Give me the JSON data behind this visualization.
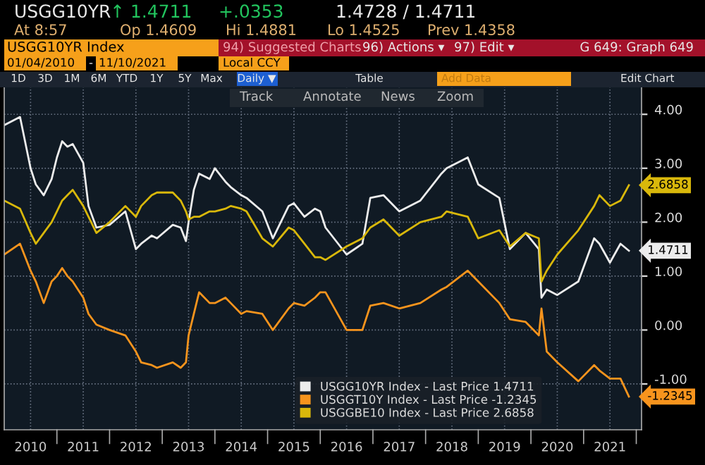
{
  "chart_data": {
    "type": "line",
    "x": [
      2010.0,
      2010.3,
      2010.5,
      2010.6,
      2010.75,
      2010.9,
      2011.0,
      2011.1,
      2011.2,
      2011.3,
      2011.5,
      2011.6,
      2011.75,
      2012.0,
      2012.3,
      2012.5,
      2012.6,
      2012.8,
      2012.9,
      2013.2,
      2013.35,
      2013.45,
      2013.5,
      2013.6,
      2013.7,
      2013.9,
      2014.0,
      2014.2,
      2014.3,
      2014.5,
      2014.6,
      2014.9,
      2015.1,
      2015.4,
      2015.5,
      2015.7,
      2015.9,
      2016.0,
      2016.1,
      2016.5,
      2016.8,
      2016.95,
      2017.2,
      2017.5,
      2017.9,
      2018.3,
      2018.4,
      2018.8,
      2019.0,
      2019.4,
      2019.6,
      2019.9,
      2020.15,
      2020.2,
      2020.3,
      2020.5,
      2020.9,
      2021.2,
      2021.3,
      2021.5,
      2021.7,
      2021.86
    ],
    "series": [
      {
        "name": "USGG10YR Index - Last Price 1.4711",
        "color": "#ececec",
        "values": [
          3.8,
          3.95,
          3.0,
          2.7,
          2.5,
          2.8,
          3.2,
          3.5,
          3.4,
          3.45,
          3.1,
          2.3,
          1.9,
          1.95,
          2.2,
          1.5,
          1.6,
          1.75,
          1.7,
          1.95,
          1.9,
          1.65,
          2.0,
          2.6,
          2.9,
          2.8,
          3.0,
          2.75,
          2.65,
          2.5,
          2.45,
          2.2,
          1.7,
          2.3,
          2.35,
          2.1,
          2.25,
          2.2,
          1.9,
          1.4,
          1.6,
          2.45,
          2.5,
          2.2,
          2.4,
          2.9,
          3.0,
          3.2,
          2.7,
          2.45,
          1.5,
          1.8,
          1.5,
          0.6,
          0.75,
          0.65,
          0.9,
          1.7,
          1.6,
          1.25,
          1.6,
          1.4711
        ]
      },
      {
        "name": "USGGT10Y Index - Last Price -1.2345",
        "color": "#f7941d",
        "values": [
          1.4,
          1.6,
          1.1,
          0.9,
          0.5,
          0.9,
          1.0,
          1.15,
          1.0,
          0.9,
          0.6,
          0.3,
          0.1,
          0.0,
          -0.1,
          -0.4,
          -0.6,
          -0.65,
          -0.7,
          -0.6,
          -0.7,
          -0.6,
          -0.1,
          0.3,
          0.7,
          0.5,
          0.5,
          0.6,
          0.5,
          0.3,
          0.35,
          0.3,
          0.0,
          0.4,
          0.5,
          0.45,
          0.6,
          0.7,
          0.7,
          0.0,
          0.0,
          0.45,
          0.5,
          0.4,
          0.5,
          0.75,
          0.8,
          1.1,
          0.9,
          0.5,
          0.2,
          0.15,
          -0.1,
          0.4,
          -0.4,
          -0.6,
          -0.95,
          -0.65,
          -0.75,
          -0.9,
          -0.9,
          -1.2345
        ]
      },
      {
        "name": "USGGBE10 Index - Last Price 2.6858",
        "color": "#d9b80b",
        "values": [
          2.4,
          2.25,
          1.8,
          1.6,
          1.8,
          2.0,
          2.2,
          2.4,
          2.5,
          2.6,
          2.3,
          2.1,
          1.8,
          2.0,
          2.3,
          2.1,
          2.3,
          2.5,
          2.55,
          2.55,
          2.4,
          2.2,
          2.05,
          2.1,
          2.1,
          2.2,
          2.2,
          2.25,
          2.3,
          2.25,
          2.2,
          1.7,
          1.55,
          1.9,
          1.85,
          1.6,
          1.35,
          1.35,
          1.3,
          1.55,
          1.7,
          1.9,
          2.05,
          1.75,
          2.0,
          2.1,
          2.2,
          2.1,
          1.7,
          1.85,
          1.55,
          1.8,
          1.7,
          0.9,
          1.1,
          1.4,
          1.85,
          2.3,
          2.5,
          2.3,
          2.4,
          2.6858
        ]
      }
    ],
    "xlim": [
      2010.0,
      2022.1
    ],
    "ylim": [
      -1.85,
      4.5
    ],
    "xticks": [
      {
        "value": 2010.5,
        "label": "2010"
      },
      {
        "value": 2011.5,
        "label": "2011"
      },
      {
        "value": 2012.5,
        "label": "2012"
      },
      {
        "value": 2013.5,
        "label": "2013"
      },
      {
        "value": 2014.5,
        "label": "2014"
      },
      {
        "value": 2015.5,
        "label": "2015"
      },
      {
        "value": 2016.5,
        "label": "2016"
      },
      {
        "value": 2017.5,
        "label": "2017"
      },
      {
        "value": 2018.5,
        "label": "2018"
      },
      {
        "value": 2019.5,
        "label": "2019"
      },
      {
        "value": 2020.5,
        "label": "2020"
      },
      {
        "value": 2021.5,
        "label": "2021"
      }
    ],
    "yticks": [
      {
        "value": -1,
        "label": "-1.00"
      },
      {
        "value": 0,
        "label": "0.00"
      },
      {
        "value": 1,
        "label": "1.00"
      },
      {
        "value": 2,
        "label": "2.00"
      },
      {
        "value": 3,
        "label": "3.00"
      },
      {
        "value": 4,
        "label": "4.00"
      }
    ],
    "grid": true,
    "legend": "bottom",
    "marker": "none",
    "line_style": "solid",
    "annotations": [
      "1.4711",
      "-1.2345",
      "2.6858",
      "USGG10YR",
      "↑ 1.4711",
      "+.0353",
      "1.4728 / 1.4711",
      "At 8:57",
      "Op 1.4609",
      "Hi 1.4881",
      "Lo 1.4525",
      "Prev 1.4358",
      "USGG10YR Index",
      "94) Suggested Charts",
      "96) Actions ▾",
      "97) Edit ▾",
      "G 649: Graph 649",
      "01/04/2010",
      "-",
      "11/10/2021",
      "Local CCY",
      "1D",
      "3D",
      "1M",
      "6M",
      "YTD",
      "1Y",
      "5Y",
      "Max",
      "Daily ▼",
      "Table",
      "Add Data",
      "Edit Chart",
      "Track",
      "Annotate",
      "News",
      "Zoom"
    ]
  }
}
